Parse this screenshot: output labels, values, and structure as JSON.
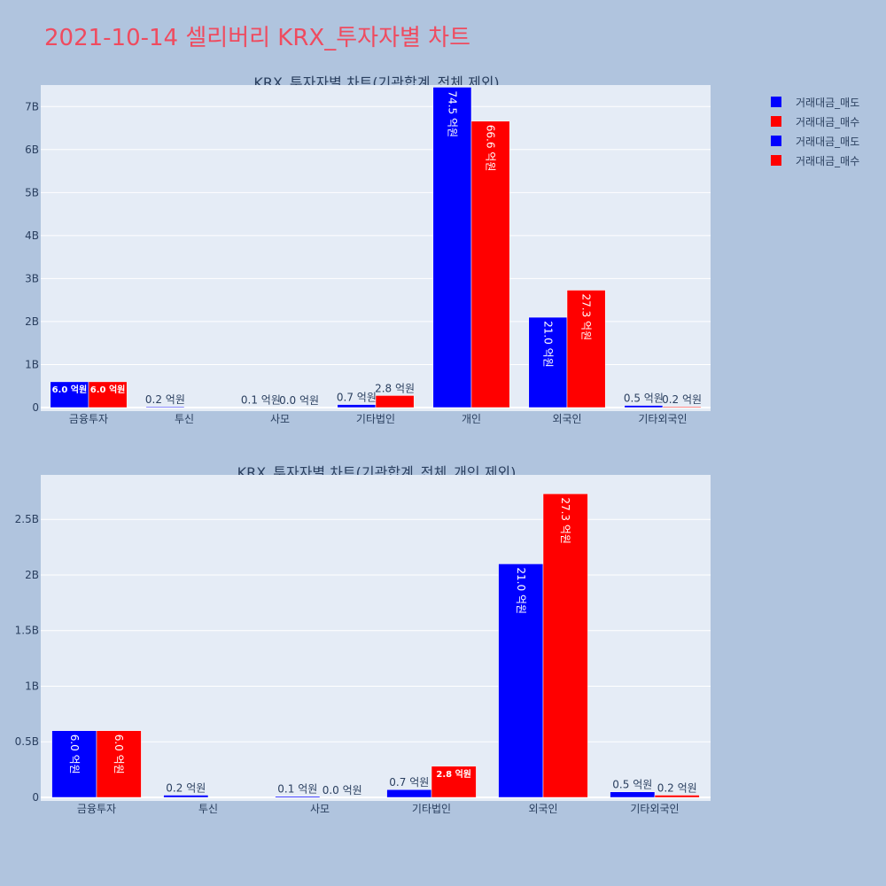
{
  "title": "2021-10-14 셀리버리 KRX_투자자별 차트",
  "legend": [
    {
      "label": "거래대금_매도",
      "color": "#0000ff"
    },
    {
      "label": "거래대금_매수",
      "color": "#ff0000"
    },
    {
      "label": "거래대금_매도",
      "color": "#0000ff"
    },
    {
      "label": "거래대금_매수",
      "color": "#ff0000"
    }
  ],
  "chart_data": [
    {
      "type": "bar",
      "title": "KRX_투자자별 차트(기관합계_전체 제외)",
      "categories": [
        "금융투자",
        "투신",
        "사모",
        "기타법인",
        "개인",
        "외국인",
        "기타외국인"
      ],
      "ylim": [
        0,
        7.5
      ],
      "yticks": [
        0,
        1,
        2,
        3,
        4,
        5,
        6,
        7
      ],
      "ytick_labels": [
        "0",
        "1B",
        "2B",
        "3B",
        "4B",
        "5B",
        "6B",
        "7B"
      ],
      "grid": true,
      "series": [
        {
          "name": "거래대금_매도",
          "color": "#0000ff",
          "values": [
            0.6,
            0.02,
            0.01,
            0.07,
            7.45,
            2.1,
            0.05
          ],
          "labels": [
            "6.0 억원",
            "0.2 억원",
            "0.1 억원",
            "0.7 억원",
            "74.5 억원",
            "21.0 억원",
            "0.5 억원"
          ]
        },
        {
          "name": "거래대금_매수",
          "color": "#ff0000",
          "values": [
            0.6,
            0,
            0.0,
            0.28,
            6.66,
            2.73,
            0.02
          ],
          "labels": [
            "6.0 억원",
            "",
            "0.0 억원",
            "2.8 억원",
            "66.6 억원",
            "27.3 억원",
            "0.2 억원"
          ]
        }
      ]
    },
    {
      "type": "bar",
      "title": "KRX_투자자별 차트(기관합계_전체_개인 제외)",
      "categories": [
        "금융투자",
        "투신",
        "사모",
        "기타법인",
        "외국인",
        "기타외국인"
      ],
      "ylim": [
        0,
        2.9
      ],
      "yticks": [
        0,
        0.5,
        1,
        1.5,
        2,
        2.5
      ],
      "ytick_labels": [
        "0",
        "0.5B",
        "1B",
        "1.5B",
        "2B",
        "2.5B"
      ],
      "grid": true,
      "series": [
        {
          "name": "거래대금_매도",
          "color": "#0000ff",
          "values": [
            0.6,
            0.02,
            0.01,
            0.07,
            2.1,
            0.05
          ],
          "labels": [
            "6.0 억원",
            "0.2 억원",
            "0.1 억원",
            "0.7 억원",
            "21.0 억원",
            "0.5 억원"
          ]
        },
        {
          "name": "거래대금_매수",
          "color": "#ff0000",
          "values": [
            0.6,
            0,
            0.0,
            0.28,
            2.73,
            0.02
          ],
          "labels": [
            "6.0 억원",
            "",
            "0.0 억원",
            "2.8 억원",
            "27.3 억원",
            "0.2 억원"
          ]
        }
      ]
    }
  ]
}
